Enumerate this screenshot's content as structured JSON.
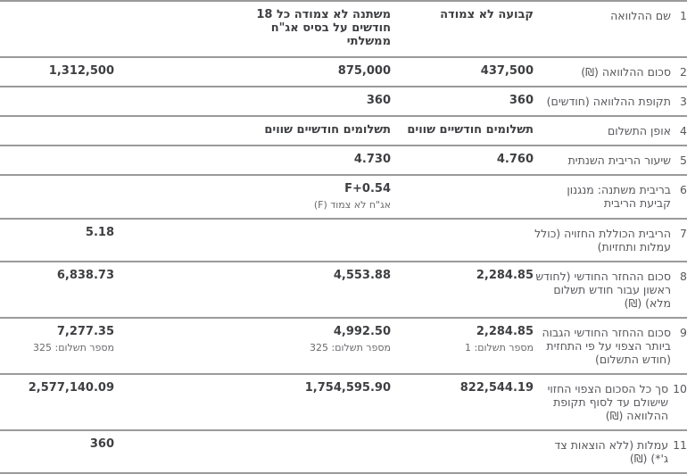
{
  "colors": {
    "divider": "#9a9a9a",
    "label_text": "#57585c",
    "value_text": "#3e3f42",
    "sub_text": "#6a6b6e",
    "background": "#ffffff"
  },
  "table": {
    "value_column_keys": [
      "track1",
      "track2",
      "spacer",
      "total"
    ],
    "rows": [
      {
        "num": "1",
        "label": "שם ההלוואה",
        "cells": {
          "track1": {
            "value": "קבועה לא צמודה"
          },
          "track2": {
            "value": "משתנה לא צמודה כל 18 חודשים על בסיס אג\"ח ממשלתי"
          },
          "total": {}
        }
      },
      {
        "num": "2",
        "label": "סכום ההלוואה (₪)",
        "cells": {
          "track1": {
            "value": "437,500"
          },
          "track2": {
            "value": "875,000"
          },
          "total": {
            "value": "1,312,500"
          }
        }
      },
      {
        "num": "3",
        "label": "תקופת ההלוואה (חודשים)",
        "cells": {
          "track1": {
            "value": "360"
          },
          "track2": {
            "value": "360"
          },
          "total": {}
        }
      },
      {
        "num": "4",
        "label": "אופן התשלום",
        "cells": {
          "track1": {
            "value": "תשלומים חודשיים שווים"
          },
          "track2": {
            "value": "תשלומים חודשיים שווים"
          },
          "total": {}
        }
      },
      {
        "num": "5",
        "label": "שיעור הריבית השנתית",
        "cells": {
          "track1": {
            "value": "4.760"
          },
          "track2": {
            "value": "4.730"
          },
          "total": {}
        }
      },
      {
        "num": "6",
        "label": "בריבית משתנה: מנגנון קביעת הריבית",
        "cells": {
          "track1": {},
          "track2": {
            "value": "F+0.54",
            "sub": "אג\"ח לא צמוד (F)"
          },
          "total": {}
        }
      },
      {
        "num": "7",
        "label": "הריבית הכוללת החזויה (כולל עמלות ותחזיות)",
        "cells": {
          "track1": {},
          "track2": {},
          "total": {
            "value": "5.18"
          }
        }
      },
      {
        "num": "8",
        "label": "סכום ההחזר החודשי (לחודש ראשון עבור חודש תשלום מלא) (₪)",
        "cells": {
          "track1": {
            "value": "2,284.85"
          },
          "track2": {
            "value": "4,553.88"
          },
          "total": {
            "value": "6,838.73"
          }
        }
      },
      {
        "num": "9",
        "label": "סכום ההחזר החודשי הגבוה ביותר הצפוי על פי התחזית (חודש התשלום)",
        "cells": {
          "track1": {
            "value": "2,284.85",
            "sub": "מספר תשלום: 1"
          },
          "track2": {
            "value": "4,992.50",
            "sub": "מספר תשלום: 325"
          },
          "total": {
            "value": "7,277.35",
            "sub": "מספר תשלום: 325"
          }
        }
      },
      {
        "num": "10",
        "label": "סך כל הסכום הצפוי החזוי שישולם עד לסוף תקופת ההלוואה (₪)",
        "cells": {
          "track1": {
            "value": "822,544.19"
          },
          "track2": {
            "value": "1,754,595.90"
          },
          "total": {
            "value": "2,577,140.09"
          }
        }
      },
      {
        "num": "11",
        "label": "עמלות (ללא הוצאות צד ג'*) (₪)",
        "cells": {
          "track1": {},
          "track2": {},
          "total": {
            "value": "360"
          }
        }
      }
    ]
  }
}
